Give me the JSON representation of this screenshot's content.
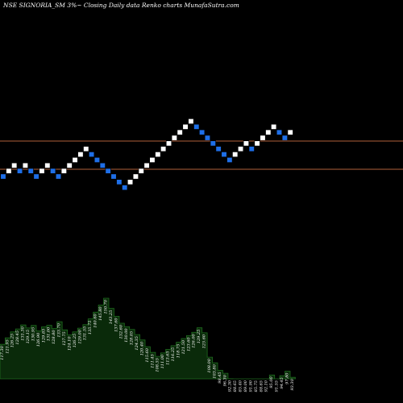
{
  "header": {
    "title": "NSE SIGNORIA_SM 3%~  Closing Daily data  Renko  charts MunafaSutra.com"
  },
  "colors": {
    "background": "#000000",
    "up_brick": "#ffffff",
    "down_brick": "#1e6fe8",
    "level_line": "#b0603a",
    "volume_fill": "#0a2a0a",
    "volume_stroke": "#1f6b1f"
  },
  "chart_data": {
    "type": "renko",
    "brick_size_label": "3%",
    "price_levels": [
      1,
      3
    ],
    "bricks": [
      {
        "dir": "down",
        "level": 0
      },
      {
        "dir": "up",
        "level": 1
      },
      {
        "dir": "up",
        "level": 2
      },
      {
        "dir": "down",
        "level": 1
      },
      {
        "dir": "up",
        "level": 2
      },
      {
        "dir": "down",
        "level": 1
      },
      {
        "dir": "down",
        "level": 0
      },
      {
        "dir": "up",
        "level": 1
      },
      {
        "dir": "up",
        "level": 2
      },
      {
        "dir": "down",
        "level": 1
      },
      {
        "dir": "down",
        "level": 0
      },
      {
        "dir": "up",
        "level": 1
      },
      {
        "dir": "up",
        "level": 2
      },
      {
        "dir": "up",
        "level": 3
      },
      {
        "dir": "up",
        "level": 4
      },
      {
        "dir": "up",
        "level": 5
      },
      {
        "dir": "down",
        "level": 4
      },
      {
        "dir": "down",
        "level": 3
      },
      {
        "dir": "down",
        "level": 2
      },
      {
        "dir": "down",
        "level": 1
      },
      {
        "dir": "down",
        "level": 0
      },
      {
        "dir": "down",
        "level": -1
      },
      {
        "dir": "down",
        "level": -2
      },
      {
        "dir": "up",
        "level": -1
      },
      {
        "dir": "up",
        "level": 0
      },
      {
        "dir": "up",
        "level": 1
      },
      {
        "dir": "up",
        "level": 2
      },
      {
        "dir": "up",
        "level": 3
      },
      {
        "dir": "up",
        "level": 4
      },
      {
        "dir": "up",
        "level": 5
      },
      {
        "dir": "up",
        "level": 6
      },
      {
        "dir": "up",
        "level": 7
      },
      {
        "dir": "up",
        "level": 8
      },
      {
        "dir": "up",
        "level": 9
      },
      {
        "dir": "up",
        "level": 10
      },
      {
        "dir": "down",
        "level": 9
      },
      {
        "dir": "down",
        "level": 8
      },
      {
        "dir": "down",
        "level": 7
      },
      {
        "dir": "down",
        "level": 6
      },
      {
        "dir": "down",
        "level": 5
      },
      {
        "dir": "down",
        "level": 4
      },
      {
        "dir": "down",
        "level": 3
      },
      {
        "dir": "up",
        "level": 4
      },
      {
        "dir": "up",
        "level": 5
      },
      {
        "dir": "up",
        "level": 6
      },
      {
        "dir": "down",
        "level": 5
      },
      {
        "dir": "up",
        "level": 6
      },
      {
        "dir": "up",
        "level": 7
      },
      {
        "dir": "up",
        "level": 8
      },
      {
        "dir": "up",
        "level": 9
      },
      {
        "dir": "down",
        "level": 8
      },
      {
        "dir": "down",
        "level": 7
      },
      {
        "dir": "up",
        "level": 8
      }
    ],
    "volume_labels": [
      "117.30",
      "121.95",
      "126.25",
      "128.45",
      "131.30",
      "129.15",
      "130.95",
      "126.90",
      "129.85",
      "131.00",
      "128.80",
      "133.70",
      "127.75",
      "124.10",
      "126.25",
      "129.00",
      "131.55",
      "135.75",
      "140.60",
      "145.80",
      "150.70",
      "143.25",
      "137.60",
      "132.60",
      "130.00",
      "128.05",
      "124.35",
      "120.40",
      "115.60",
      "111.45",
      "108.55",
      "111.00",
      "113.65",
      "116.25",
      "118.75",
      "121.50",
      "123.60",
      "126.00",
      "129.25",
      "125.60",
      "108.00",
      "103.80",
      "98.45",
      "96.30",
      "92.30",
      "88.65",
      "85.40",
      "89.00",
      "91.90",
      "85.75",
      "88.65",
      "92.10",
      "95.00",
      "91.55",
      "94.45",
      "97.80",
      "93.30"
    ]
  }
}
